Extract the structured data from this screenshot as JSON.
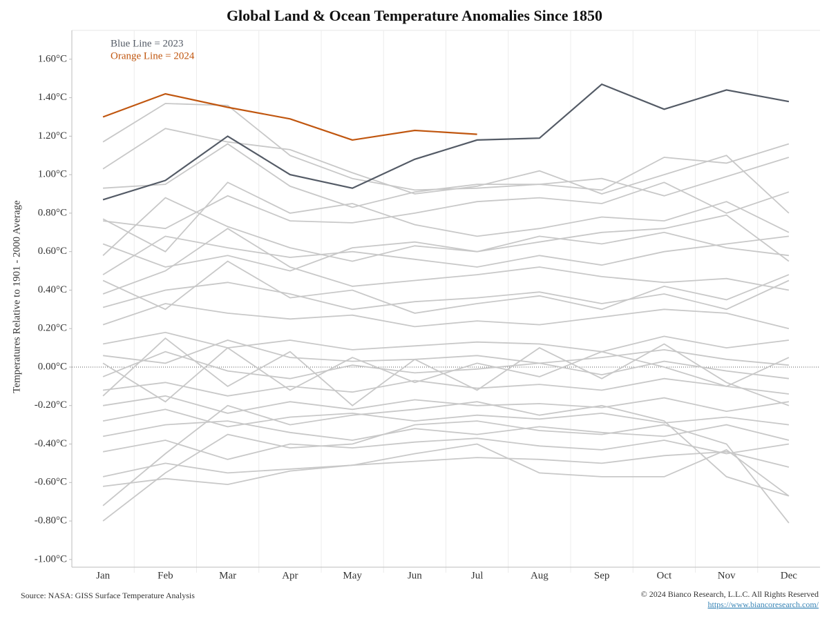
{
  "chart_data": {
    "type": "line",
    "title": "Global Land & Ocean Temperature Anomalies Since 1850",
    "y_label": "Temperatures Relative to 1901 - 2000 Average",
    "annotations": [
      {
        "text": "Blue Line = 2023",
        "color": "#545b66"
      },
      {
        "text": "Orange Line = 2024",
        "color": "#c0560f"
      }
    ],
    "source": "Source: NASA: GISS Surface Temperature Analysis",
    "copyright": "© 2024 Bianco Research, L.L.C. All Rights Reserved",
    "url": "https://www.biancoresearch.com/",
    "categories": [
      "Jan",
      "Feb",
      "Mar",
      "Apr",
      "May",
      "Jun",
      "Jul",
      "Aug",
      "Sep",
      "Oct",
      "Nov",
      "Dec"
    ],
    "ylim": [
      -1.04,
      1.75
    ],
    "yticks": [
      {
        "value": -1.0,
        "label": "-1.00°C"
      },
      {
        "value": -0.8,
        "label": "-0.80°C"
      },
      {
        "value": -0.6,
        "label": "-0.60°C"
      },
      {
        "value": -0.4,
        "label": "-0.40°C"
      },
      {
        "value": -0.2,
        "label": "-0.20°C"
      },
      {
        "value": 0,
        "label": "0.00°C"
      },
      {
        "value": 0.2,
        "label": "0.20°C"
      },
      {
        "value": 0.4,
        "label": "0.40°C"
      },
      {
        "value": 0.6,
        "label": "0.60°C"
      },
      {
        "value": 0.8,
        "label": "0.80°C"
      },
      {
        "value": 1.0,
        "label": "1.00°C"
      },
      {
        "value": 1.2,
        "label": "1.20°C"
      },
      {
        "value": 1.4,
        "label": "1.40°C"
      },
      {
        "value": 1.6,
        "label": "1.60°C"
      }
    ],
    "series": [
      {
        "color": "#c8c8c8",
        "values": [
          1.17,
          1.37,
          1.36,
          1.1,
          0.98,
          0.92,
          0.93,
          0.95,
          0.92,
          1.09,
          1.06,
          1.16
        ]
      },
      {
        "color": "#c8c8c8",
        "values": [
          1.03,
          1.24,
          1.17,
          1.13,
          1.01,
          0.9,
          0.94,
          1.02,
          0.9,
          1.0,
          1.1,
          0.8
        ]
      },
      {
        "color": "#c8c8c8",
        "values": [
          0.93,
          0.95,
          1.16,
          0.94,
          0.83,
          0.91,
          0.95,
          0.95,
          0.98,
          0.89,
          0.99,
          1.09
        ]
      },
      {
        "color": "#c8c8c8",
        "values": [
          0.76,
          0.72,
          0.89,
          0.76,
          0.75,
          0.8,
          0.86,
          0.88,
          0.85,
          0.96,
          0.8,
          0.91
        ]
      },
      {
        "color": "#c8c8c8",
        "values": [
          0.77,
          0.6,
          0.96,
          0.8,
          0.85,
          0.74,
          0.68,
          0.72,
          0.78,
          0.76,
          0.86,
          0.7
        ]
      },
      {
        "color": "#c8c8c8",
        "values": [
          0.58,
          0.88,
          0.73,
          0.62,
          0.55,
          0.63,
          0.6,
          0.65,
          0.7,
          0.72,
          0.79,
          0.55
        ]
      },
      {
        "color": "#c8c8c8",
        "values": [
          0.48,
          0.68,
          0.62,
          0.57,
          0.6,
          0.56,
          0.52,
          0.58,
          0.53,
          0.6,
          0.64,
          0.68
        ]
      },
      {
        "color": "#c8c8c8",
        "values": [
          0.38,
          0.5,
          0.72,
          0.52,
          0.42,
          0.45,
          0.48,
          0.52,
          0.47,
          0.44,
          0.46,
          0.4
        ]
      },
      {
        "color": "#c8c8c8",
        "values": [
          0.31,
          0.4,
          0.44,
          0.38,
          0.3,
          0.34,
          0.36,
          0.39,
          0.33,
          0.38,
          0.3,
          0.45
        ]
      },
      {
        "color": "#c8c8c8",
        "values": [
          0.22,
          0.33,
          0.28,
          0.25,
          0.27,
          0.21,
          0.24,
          0.22,
          0.26,
          0.3,
          0.28,
          0.2
        ]
      },
      {
        "color": "#c8c8c8",
        "values": [
          0.12,
          0.18,
          0.1,
          0.14,
          0.09,
          0.11,
          0.13,
          0.12,
          0.08,
          0.16,
          0.1,
          0.14
        ]
      },
      {
        "color": "#c8c8c8",
        "values": [
          0.06,
          0.02,
          0.14,
          0.05,
          0.03,
          0.04,
          0.06,
          0.02,
          0.05,
          0.09,
          0.04,
          0.01
        ]
      },
      {
        "color": "#c8c8c8",
        "values": [
          -0.05,
          0.08,
          -0.02,
          -0.06,
          0.01,
          -0.03,
          -0.01,
          0.02,
          -0.04,
          0.03,
          -0.02,
          -0.06
        ]
      },
      {
        "color": "#c8c8c8",
        "values": [
          -0.12,
          -0.08,
          -0.15,
          -0.1,
          -0.13,
          -0.07,
          -0.11,
          -0.09,
          -0.12,
          -0.06,
          -0.1,
          -0.14
        ]
      },
      {
        "color": "#c8c8c8",
        "values": [
          -0.2,
          -0.15,
          -0.24,
          -0.18,
          -0.22,
          -0.17,
          -0.2,
          -0.19,
          -0.21,
          -0.16,
          -0.23,
          -0.18
        ]
      },
      {
        "color": "#c8c8c8",
        "values": [
          -0.28,
          -0.22,
          -0.31,
          -0.26,
          -0.24,
          -0.28,
          -0.25,
          -0.27,
          -0.24,
          -0.29,
          -0.26,
          -0.3
        ]
      },
      {
        "color": "#c8c8c8",
        "values": [
          -0.36,
          -0.3,
          -0.28,
          -0.34,
          -0.38,
          -0.32,
          -0.35,
          -0.31,
          -0.34,
          -0.36,
          -0.3,
          -0.38
        ]
      },
      {
        "color": "#c8c8c8",
        "values": [
          -0.44,
          -0.38,
          -0.48,
          -0.4,
          -0.42,
          -0.39,
          -0.37,
          -0.41,
          -0.43,
          -0.38,
          -0.45,
          -0.4
        ]
      },
      {
        "color": "#c8c8c8",
        "values": [
          -0.57,
          -0.5,
          -0.55,
          -0.53,
          -0.51,
          -0.49,
          -0.47,
          -0.48,
          -0.5,
          -0.46,
          -0.44,
          -0.52
        ]
      },
      {
        "color": "#c8c8c8",
        "values": [
          -0.62,
          -0.58,
          -0.61,
          -0.54,
          -0.51,
          -0.45,
          -0.4,
          -0.55,
          -0.57,
          -0.57,
          -0.43,
          -0.67
        ]
      },
      {
        "color": "#c8c8c8",
        "values": [
          -0.8,
          -0.55,
          -0.35,
          -0.42,
          -0.4,
          -0.3,
          -0.28,
          -0.33,
          -0.35,
          -0.3,
          -0.4,
          -0.81
        ]
      },
      {
        "color": "#c8c8c8",
        "values": [
          -0.72,
          -0.45,
          -0.2,
          -0.3,
          -0.25,
          -0.22,
          -0.18,
          -0.25,
          -0.2,
          -0.28,
          -0.57,
          -0.67
        ]
      },
      {
        "color": "#c8c8c8",
        "values": [
          0.02,
          -0.18,
          0.1,
          -0.12,
          0.05,
          -0.08,
          0.02,
          -0.05,
          0.08,
          0.0,
          -0.1,
          0.05
        ]
      },
      {
        "color": "#c8c8c8",
        "values": [
          -0.15,
          0.15,
          -0.1,
          0.08,
          -0.2,
          0.04,
          -0.12,
          0.1,
          -0.06,
          0.12,
          -0.08,
          -0.2
        ]
      },
      {
        "color": "#c8c8c8",
        "values": [
          0.45,
          0.3,
          0.55,
          0.36,
          0.4,
          0.28,
          0.33,
          0.37,
          0.3,
          0.42,
          0.35,
          0.48
        ]
      },
      {
        "color": "#c8c8c8",
        "values": [
          0.64,
          0.52,
          0.58,
          0.5,
          0.62,
          0.65,
          0.6,
          0.68,
          0.64,
          0.7,
          0.62,
          0.58
        ]
      },
      {
        "color": "#c0560f",
        "values": [
          1.3,
          1.42,
          1.35,
          1.29,
          1.18,
          1.23,
          1.21,
          null,
          null,
          null,
          null,
          null
        ]
      },
      {
        "color": "#545b66",
        "values": [
          0.87,
          0.97,
          1.2,
          1.0,
          0.93,
          1.08,
          1.18,
          1.19,
          1.47,
          1.34,
          1.44,
          1.38
        ]
      }
    ]
  }
}
